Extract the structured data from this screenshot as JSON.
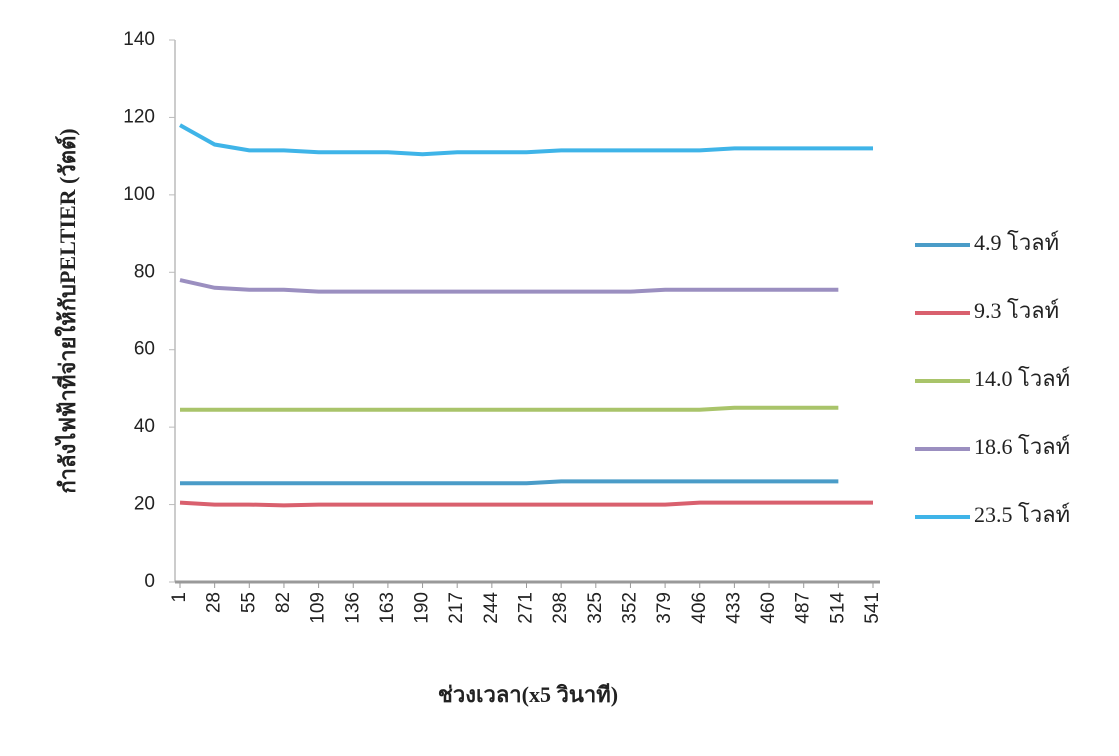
{
  "chart_data": {
    "type": "line",
    "y_label": "กำลังไฟฟ้าที่จ่ายให้กับPELTIER (วัตต์)",
    "x_label": "ช่วงเวลา(x5 วินาที)",
    "x": [
      1,
      28,
      55,
      82,
      109,
      136,
      163,
      190,
      217,
      244,
      271,
      298,
      325,
      352,
      379,
      406,
      433,
      460,
      487,
      514,
      541
    ],
    "xlim": [
      1,
      541
    ],
    "xticks": [
      1,
      28,
      55,
      82,
      109,
      136,
      163,
      190,
      217,
      244,
      271,
      298,
      325,
      352,
      379,
      406,
      433,
      460,
      487,
      514,
      541
    ],
    "ylim": [
      0,
      140
    ],
    "yticks": [
      0,
      20,
      40,
      60,
      80,
      100,
      120,
      140
    ],
    "series": [
      {
        "name": "4.9 โวลท์",
        "color": "#4a9cc8",
        "values": [
          25.5,
          25.5,
          25.5,
          25.5,
          25.5,
          25.5,
          25.5,
          25.5,
          25.5,
          25.5,
          25.5,
          26,
          26,
          26,
          26,
          26,
          26,
          26,
          26,
          26,
          null
        ]
      },
      {
        "name": "9.3 โวลท์",
        "color": "#d9606e",
        "values": [
          20.5,
          20,
          20,
          19.8,
          20,
          20,
          20,
          20,
          20,
          20,
          20,
          20,
          20,
          20,
          20,
          20.5,
          20.5,
          20.5,
          20.5,
          20.5,
          20.5
        ]
      },
      {
        "name": "14.0 โวลท์",
        "color": "#a9c46a",
        "values": [
          44.5,
          44.5,
          44.5,
          44.5,
          44.5,
          44.5,
          44.5,
          44.5,
          44.5,
          44.5,
          44.5,
          44.5,
          44.5,
          44.5,
          44.5,
          44.5,
          45,
          45,
          45,
          45,
          null
        ]
      },
      {
        "name": "18.6 โวลท์",
        "color": "#9b8fc0",
        "values": [
          78,
          76,
          75.5,
          75.5,
          75,
          75,
          75,
          75,
          75,
          75,
          75,
          75,
          75,
          75,
          75.5,
          75.5,
          75.5,
          75.5,
          75.5,
          75.5,
          null
        ]
      },
      {
        "name": "23.5 โวลท์",
        "color": "#3fb4e8",
        "values": [
          118,
          113,
          111.5,
          111.5,
          111,
          111,
          111,
          110.5,
          111,
          111,
          111,
          111.5,
          111.5,
          111.5,
          111.5,
          111.5,
          112,
          112,
          112,
          112,
          112
        ]
      }
    ]
  }
}
